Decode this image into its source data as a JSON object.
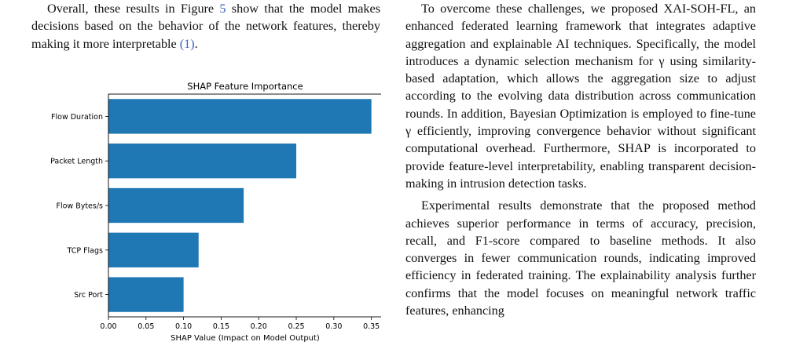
{
  "left_column": {
    "paragraph": {
      "text_before_figure_ref": "Overall, these results in Figure ",
      "figure_ref": "5",
      "text_middle": " show that the model makes decisions based on the behavior of the network features, thereby making it more interpretable ",
      "citation": "(1)",
      "text_end": "."
    }
  },
  "right_column": {
    "paragraphs": [
      "To overcome these challenges, we proposed XAI-SOH-FL, an enhanced federated learning framework that integrates adaptive aggregation and explainable AI techniques. Specifically, the model introduces a dynamic selection mechanism for γ using similarity-based adaptation, which allows the aggregation size to adjust according to the evolving data distribution across communication rounds. In addition, Bayesian Optimization is employed to fine-tune γ efficiently, improving convergence behavior without significant computational overhead. Furthermore, SHAP is incorporated to provide feature-level interpretability, enabling transparent decision-making in intrusion detection tasks.",
      "Experimental results demonstrate that the proposed method achieves superior performance in terms of accuracy, precision, recall, and F1-score compared to baseline methods. It also converges in fewer communication rounds, indicating improved efficiency in federated training. The explainability analysis further confirms that the model focuses on meaningful network traffic features, enhancing"
    ]
  },
  "chart_data": {
    "type": "bar",
    "orientation": "horizontal",
    "title": "SHAP Feature Importance",
    "xlabel": "SHAP Value (Impact on Model Output)",
    "ylabel": "",
    "categories": [
      "Flow Duration",
      "Packet Length",
      "Flow Bytes/s",
      "TCP Flags",
      "Src Port"
    ],
    "values": [
      0.35,
      0.25,
      0.18,
      0.12,
      0.1
    ],
    "xlim": [
      0,
      0.365
    ],
    "xticks": [
      "0.00",
      "0.05",
      "0.10",
      "0.15",
      "0.20",
      "0.25",
      "0.30",
      "0.35"
    ],
    "xtick_values": [
      0,
      0.05,
      0.1,
      0.15,
      0.2,
      0.25,
      0.3,
      0.35
    ],
    "grid": false,
    "bar_color": "#1f77b4"
  }
}
